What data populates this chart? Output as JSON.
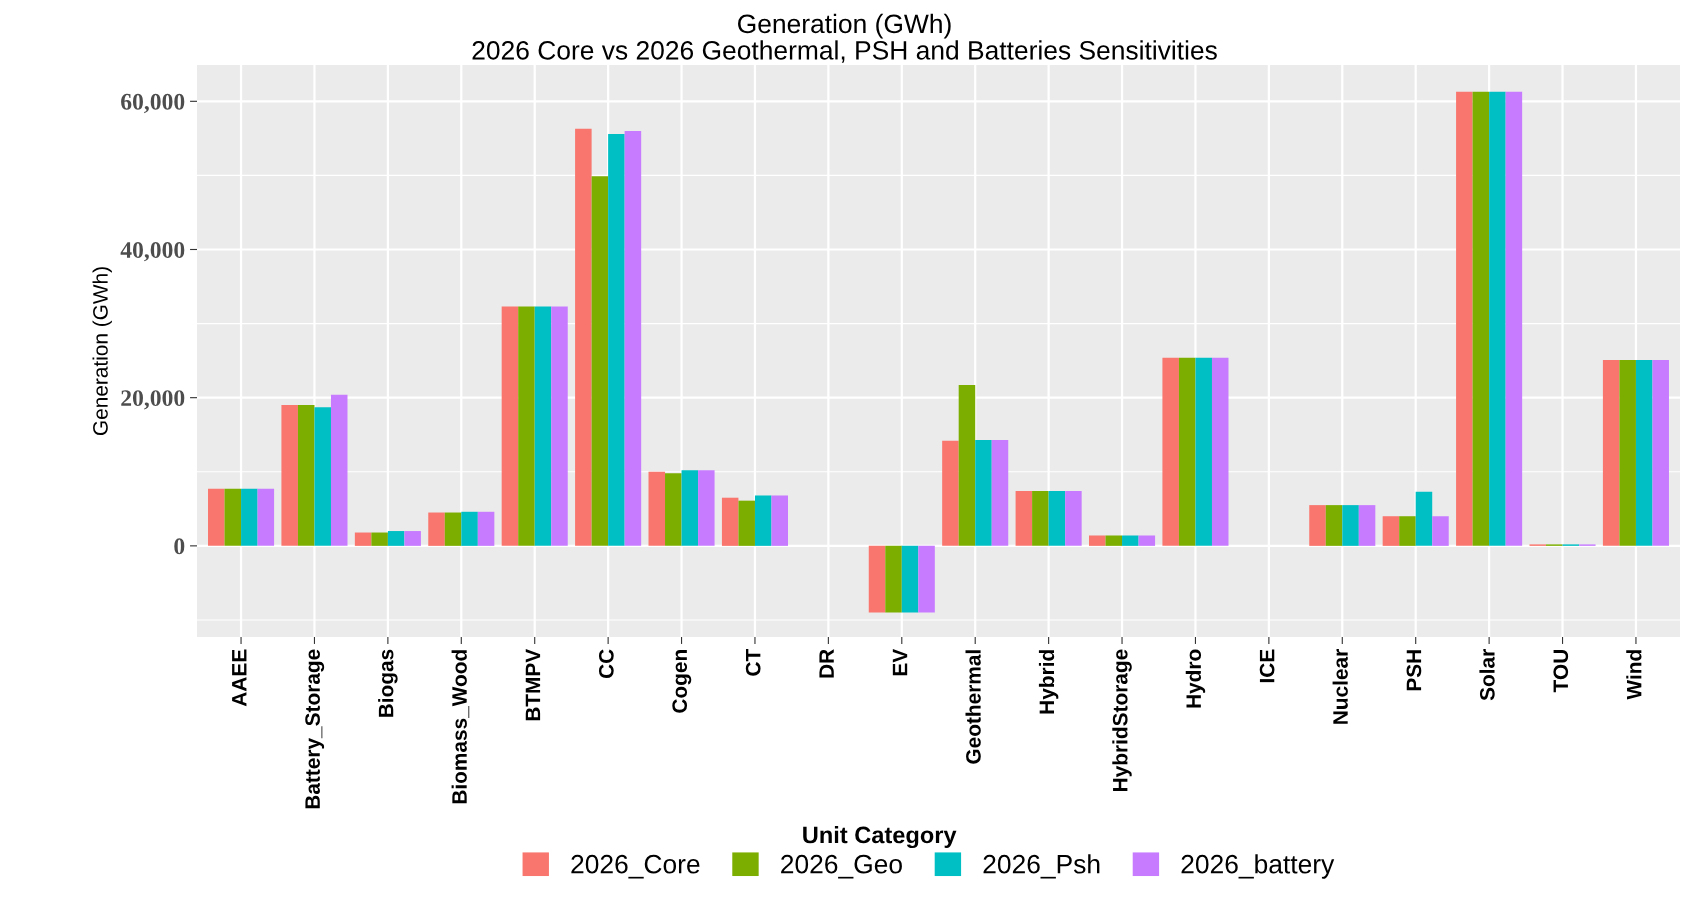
{
  "chart_data": {
    "type": "bar",
    "title": "Generation (GWh)\n2026 Core vs 2026 Geothermal, PSH and Batteries Sensitivities",
    "xlabel": "Unit Category",
    "ylabel": "Generation (GWh)",
    "categories": [
      "AAEE",
      "Battery_Storage",
      "Biogas",
      "Biomass_Wood",
      "BTMPV",
      "CC",
      "Cogen",
      "CT",
      "DR",
      "EV",
      "Geothermal",
      "Hybrid",
      "HybridStorage",
      "Hydro",
      "ICE",
      "Nuclear",
      "PSH",
      "Solar",
      "TOU",
      "Wind"
    ],
    "series": [
      {
        "name": "2026_Core",
        "color": "#f8766d",
        "values": [
          7700,
          19000,
          1800,
          4500,
          32300,
          56300,
          10000,
          6500,
          0,
          -9000,
          14200,
          7400,
          1400,
          25400,
          0,
          5500,
          4000,
          61300,
          200,
          25100
        ]
      },
      {
        "name": "2026_Geo",
        "color": "#7cae00",
        "values": [
          7700,
          19000,
          1800,
          4500,
          32300,
          49900,
          9800,
          6100,
          0,
          -9000,
          21700,
          7400,
          1400,
          25400,
          0,
          5500,
          4000,
          61300,
          200,
          25100
        ]
      },
      {
        "name": "2026_Psh",
        "color": "#00bfc4",
        "values": [
          7700,
          18700,
          2000,
          4600,
          32300,
          55600,
          10200,
          6800,
          0,
          -9000,
          14300,
          7400,
          1400,
          25400,
          0,
          5500,
          7300,
          61300,
          200,
          25100
        ]
      },
      {
        "name": "2026_battery",
        "color": "#c77cff",
        "values": [
          7700,
          20400,
          2000,
          4600,
          32300,
          56000,
          10200,
          6800,
          0,
          -9000,
          14300,
          7400,
          1400,
          25400,
          0,
          5500,
          4000,
          61300,
          200,
          25100
        ]
      }
    ],
    "ylim": [
      -12300,
      64900
    ],
    "yticks": [
      {
        "value": 0,
        "label": "0"
      },
      {
        "value": 20000,
        "label": "20,000"
      },
      {
        "value": 40000,
        "label": "40,000"
      },
      {
        "value": 60000,
        "label": "60,000"
      }
    ],
    "grid": true,
    "legend": "bottom"
  }
}
